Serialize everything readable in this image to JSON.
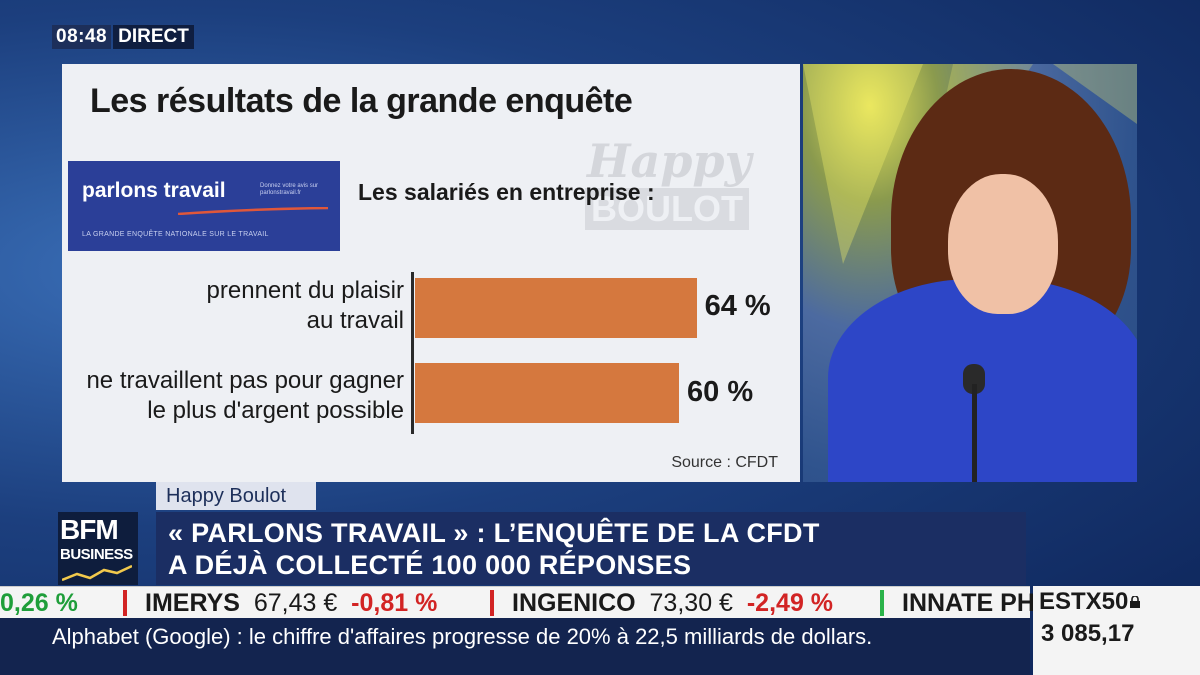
{
  "clock": {
    "time": "08:48",
    "status": "DIRECT"
  },
  "graphic": {
    "title": "Les résultats de la grande enquête",
    "watermark_top": "Happy",
    "watermark_bottom": "BOULOT",
    "logo": {
      "main": "parlons travail",
      "side": "Donnez votre avis sur parlonstravail.fr",
      "sub": "LA GRANDE ENQUÊTE NATIONALE SUR LE TRAVAIL"
    },
    "subtitle": "Les salariés en entreprise :",
    "source": "Source : CFDT"
  },
  "chart_data": {
    "type": "bar",
    "orientation": "horizontal",
    "categories": [
      "prennent du plaisir au travail",
      "ne travaillent pas pour gagner le plus d'argent possible"
    ],
    "category_lines": [
      [
        "prennent du plaisir",
        "au travail"
      ],
      [
        "ne travaillent pas pour gagner",
        "le plus d'argent possible"
      ]
    ],
    "values": [
      64,
      60
    ],
    "value_labels": [
      "64 %",
      "60 %"
    ],
    "title": "Les salariés en entreprise :",
    "xlim": [
      0,
      100
    ],
    "bar_color": "#d5783e",
    "grid": false
  },
  "caption": {
    "tag": "Happy Boulot",
    "line1": "« PARLONS TRAVAIL » : L’ENQUÊTE DE LA CFDT",
    "line2": "A DÉJÀ COLLECTÉ 100 000 RÉPONSES"
  },
  "channel": {
    "top": "BFM",
    "bottom": "BUSINESS"
  },
  "ticker": {
    "items": [
      {
        "text": "0,26 %",
        "color": "#1f9e3a"
      },
      {
        "name": "IMERYS",
        "price": "67,43 €",
        "change": "-0,81 %"
      },
      {
        "name": "INGENICO",
        "price": "73,30 €",
        "change": "-2,49 %"
      },
      {
        "name": "INNATE PH"
      }
    ],
    "separator_colors": [
      "#d22424",
      "#d22424",
      "#2bb34a"
    ],
    "news": "Alphabet (Google) : le chiffre d'affaires progresse de 20% à 22,5 milliards de dollars."
  },
  "index": {
    "name": "ESTX50",
    "value": "3 085,17"
  }
}
